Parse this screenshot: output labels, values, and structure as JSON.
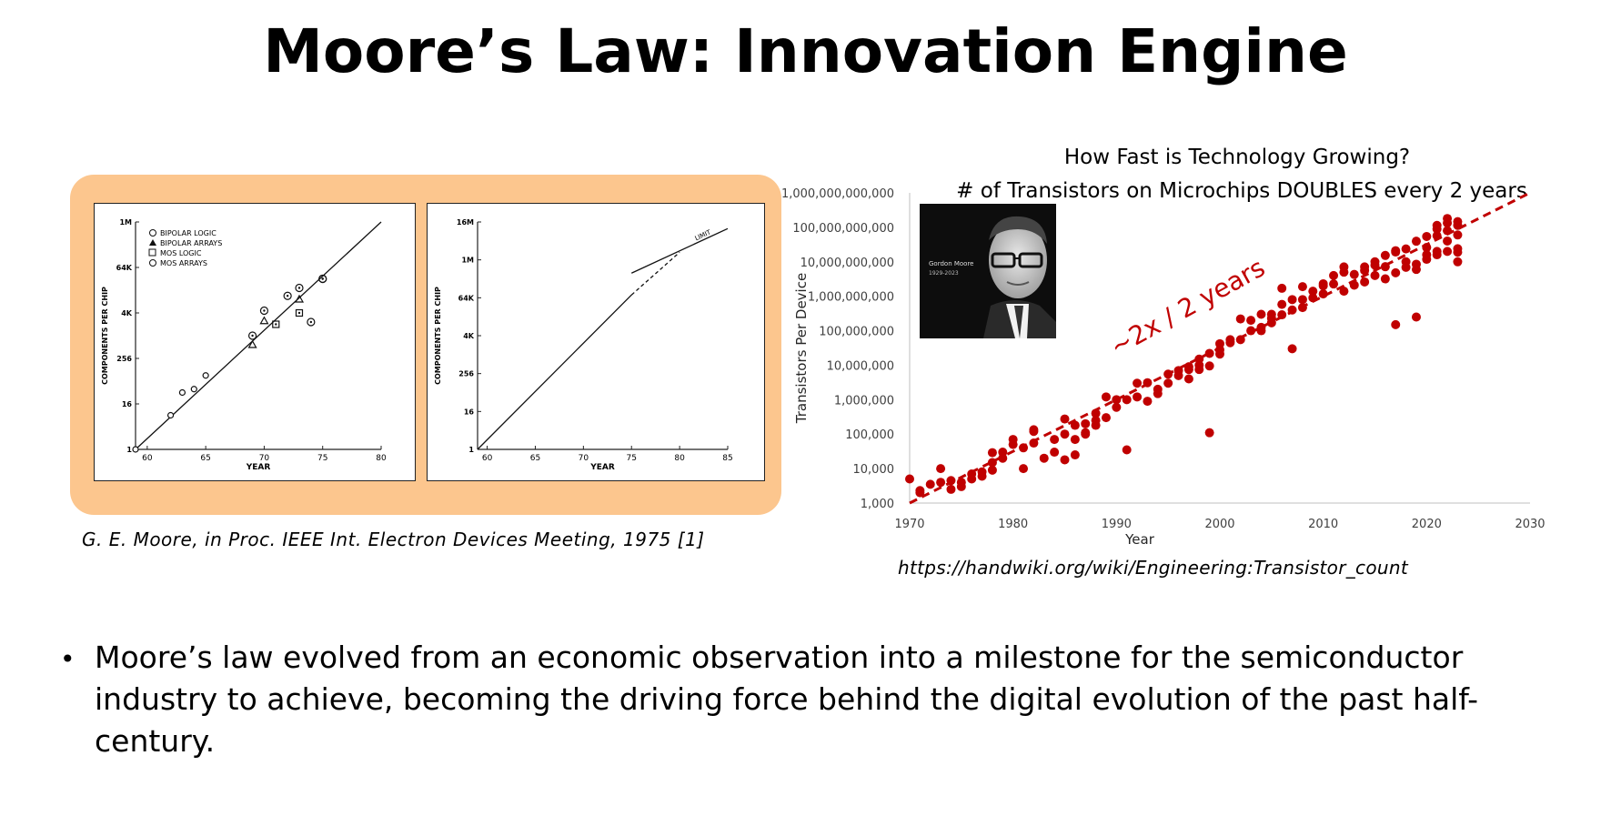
{
  "slide": {
    "title": "Moore’s Law: Innovation Engine",
    "left_caption": "G. E. Moore, in Proc. IEEE Int. Electron Devices Meeting, 1975 [1]",
    "right_caption": "https://handwiki.org/wiki/Engineering:Transistor_count",
    "bullet": "Moore’s law evolved from an economic observation into a milestone for the semiconductor industry to achieve, becoming the driving force behind the digital evolution of the past half-century.",
    "panel_color": "#fcc68e",
    "portrait": {
      "name": "Gordon Moore",
      "years": "1929-2023"
    }
  },
  "chart_data": [
    {
      "type": "scatter",
      "title": "",
      "xlabel": "YEAR",
      "ylabel": "COMPONENTS PER CHIP",
      "x_ticks": [
        "60",
        "65",
        "70",
        "75",
        "80"
      ],
      "y_ticks": [
        "1",
        "16",
        "256",
        "4K",
        "64K",
        "1M"
      ],
      "xlim": [
        59,
        80
      ],
      "ylim_log2": [
        0,
        20
      ],
      "legend": [
        "BIPOLAR LOGIC",
        "BIPOLAR ARRAYS",
        "MOS LOGIC",
        "MOS ARRAYS"
      ],
      "legend_placement": "top-left",
      "trend_line": {
        "x": [
          59,
          80
        ],
        "log2_y": [
          0,
          20
        ]
      },
      "trend_points_log2": [
        [
          59,
          0
        ],
        [
          62,
          3
        ],
        [
          63,
          5
        ],
        [
          64,
          5.3
        ],
        [
          65,
          6.5
        ]
      ],
      "series": [
        {
          "name": "BIPOLAR LOGIC",
          "points_log2": [
            [
              69,
              10
            ],
            [
              70,
              12.2
            ],
            [
              72,
              13.5
            ],
            [
              73,
              14.2
            ],
            [
              74,
              11.2
            ],
            [
              75,
              15
            ]
          ]
        },
        {
          "name": "BIPOLAR ARRAYS",
          "points_log2": [
            [
              69,
              9.2
            ],
            [
              70,
              11.3
            ],
            [
              73,
              13.2
            ]
          ]
        },
        {
          "name": "MOS LOGIC",
          "points_log2": [
            [
              71,
              11
            ],
            [
              73,
              12
            ]
          ]
        },
        {
          "name": "MOS ARRAYS",
          "points_log2": [
            [
              75,
              15
            ]
          ]
        }
      ]
    },
    {
      "type": "line",
      "title": "",
      "xlabel": "YEAR",
      "ylabel": "COMPONENTS PER CHIP",
      "x_ticks": [
        "60",
        "65",
        "70",
        "75",
        "80",
        "85"
      ],
      "y_ticks": [
        "1",
        "16",
        "256",
        "4K",
        "64K",
        "1M",
        "16M"
      ],
      "xlim": [
        59,
        85
      ],
      "ylim_log2": [
        0,
        24
      ],
      "annotation": "LIMIT",
      "series": [
        {
          "name": "",
          "style": "solid",
          "x": [
            59,
            75
          ],
          "log2_y": [
            0,
            16.3
          ]
        },
        {
          "name": "",
          "style": "dashed",
          "x": [
            75,
            80
          ],
          "log2_y": [
            16.3,
            20.8
          ]
        },
        {
          "name": "",
          "style": "solid",
          "x": [
            75,
            85
          ],
          "log2_y": [
            18.6,
            23.3
          ]
        }
      ]
    },
    {
      "type": "scatter",
      "title": "How Fast is Technology Growing?",
      "subtitle": "# of Transistors on Microchips DOUBLES every 2 years",
      "xlabel": "Year",
      "ylabel": "Transistors Per Device",
      "x_ticks": [
        "1970",
        "1980",
        "1990",
        "2000",
        "2010",
        "2020",
        "2030"
      ],
      "y_ticks": [
        "1,000",
        "10,000",
        "100,000",
        "1,000,000",
        "10,000,000",
        "100,000,000",
        "1,000,000,000",
        "10,000,000,000",
        "100,000,000,000",
        "1,000,000,000,000"
      ],
      "xlim": [
        1970,
        2030
      ],
      "ylog": true,
      "ylim": [
        1000,
        1000000000000
      ],
      "trend_label": "~2x / 2 years",
      "trend_line": {
        "x": [
          1970,
          2030
        ],
        "y": [
          1000,
          1000000000000
        ],
        "style": "dashed"
      },
      "color": "#c00000",
      "points": [
        [
          1970,
          5000
        ],
        [
          1971,
          2300
        ],
        [
          1971,
          2000
        ],
        [
          1972,
          3500
        ],
        [
          1973,
          4000
        ],
        [
          1973,
          10000
        ],
        [
          1974,
          2500
        ],
        [
          1974,
          4500
        ],
        [
          1975,
          3000
        ],
        [
          1975,
          4000
        ],
        [
          1976,
          5000
        ],
        [
          1976,
          7000
        ],
        [
          1977,
          6000
        ],
        [
          1977,
          8000
        ],
        [
          1978,
          9000
        ],
        [
          1978,
          15000
        ],
        [
          1978,
          29000
        ],
        [
          1979,
          30000
        ],
        [
          1979,
          20000
        ],
        [
          1980,
          50000
        ],
        [
          1980,
          70000
        ],
        [
          1981,
          40000
        ],
        [
          1981,
          10000
        ],
        [
          1982,
          55000
        ],
        [
          1982,
          120000
        ],
        [
          1982,
          134000
        ],
        [
          1983,
          20000
        ],
        [
          1984,
          70000
        ],
        [
          1984,
          30000
        ],
        [
          1985,
          275000
        ],
        [
          1985,
          100000
        ],
        [
          1985,
          18000
        ],
        [
          1986,
          70000
        ],
        [
          1986,
          180000
        ],
        [
          1986,
          25000
        ],
        [
          1987,
          200000
        ],
        [
          1987,
          100000
        ],
        [
          1987,
          110000
        ],
        [
          1988,
          250000
        ],
        [
          1988,
          400000
        ],
        [
          1988,
          180000
        ],
        [
          1989,
          1200000
        ],
        [
          1989,
          300000
        ],
        [
          1990,
          1000000
        ],
        [
          1990,
          600000
        ],
        [
          1991,
          1000000
        ],
        [
          1991,
          35000
        ],
        [
          1992,
          3000000
        ],
        [
          1992,
          1200000
        ],
        [
          1993,
          3100000
        ],
        [
          1993,
          900000
        ],
        [
          1994,
          2000000
        ],
        [
          1994,
          1500000
        ],
        [
          1995,
          5500000
        ],
        [
          1995,
          3000000
        ],
        [
          1996,
          7000000
        ],
        [
          1996,
          5000000
        ],
        [
          1997,
          7500000
        ],
        [
          1997,
          4000000
        ],
        [
          1997,
          9000000
        ],
        [
          1998,
          7500000
        ],
        [
          1998,
          10000000
        ],
        [
          1998,
          15000000
        ],
        [
          1999,
          22000000
        ],
        [
          1999,
          9500000
        ],
        [
          1999,
          110000
        ],
        [
          2000,
          42000000
        ],
        [
          2000,
          28000000
        ],
        [
          2000,
          21000000
        ],
        [
          2001,
          45000000
        ],
        [
          2001,
          55000000
        ],
        [
          2002,
          220000000
        ],
        [
          2002,
          55000000
        ],
        [
          2003,
          100000000
        ],
        [
          2003,
          200000000
        ],
        [
          2004,
          125000000
        ],
        [
          2004,
          300000000
        ],
        [
          2004,
          100000000
        ],
        [
          2005,
          230000000
        ],
        [
          2005,
          300000000
        ],
        [
          2005,
          170000000
        ],
        [
          2006,
          290000000
        ],
        [
          2006,
          580000000
        ],
        [
          2006,
          1700000000
        ],
        [
          2007,
          800000000
        ],
        [
          2007,
          400000000
        ],
        [
          2007,
          30000000
        ],
        [
          2008,
          800000000
        ],
        [
          2008,
          1900000000
        ],
        [
          2008,
          470000000
        ],
        [
          2009,
          900000000
        ],
        [
          2009,
          1400000000
        ],
        [
          2010,
          2300000000
        ],
        [
          2010,
          1170000000
        ],
        [
          2010,
          2000000000
        ],
        [
          2011,
          2270000000
        ],
        [
          2011,
          4000000000
        ],
        [
          2012,
          1400000000
        ],
        [
          2012,
          5000000000
        ],
        [
          2012,
          7100000000
        ],
        [
          2013,
          2100000000
        ],
        [
          2013,
          4300000000
        ],
        [
          2014,
          2600000000
        ],
        [
          2014,
          5600000000
        ],
        [
          2014,
          7100000000
        ],
        [
          2015,
          4000000000
        ],
        [
          2015,
          8000000000
        ],
        [
          2015,
          10000000000
        ],
        [
          2016,
          3200000000
        ],
        [
          2016,
          7200000000
        ],
        [
          2016,
          15300000000
        ],
        [
          2017,
          4800000000
        ],
        [
          2017,
          21000000000
        ],
        [
          2017,
          19200000000
        ],
        [
          2017,
          150000000
        ],
        [
          2018,
          6900000000
        ],
        [
          2018,
          10000000000
        ],
        [
          2018,
          23600000000
        ],
        [
          2019,
          8500000000
        ],
        [
          2019,
          39500000000
        ],
        [
          2019,
          6000000000
        ],
        [
          2019,
          250000000
        ],
        [
          2020,
          11800000000
        ],
        [
          2020,
          16000000000
        ],
        [
          2020,
          54200000000
        ],
        [
          2020,
          26000000000
        ],
        [
          2021,
          16000000000
        ],
        [
          2021,
          20000000000
        ],
        [
          2021,
          57000000000
        ],
        [
          2021,
          114000000000
        ],
        [
          2022,
          20000000000
        ],
        [
          2022,
          80000000000
        ],
        [
          2022,
          134000000000
        ],
        [
          2022,
          40000000000
        ],
        [
          2023,
          114000000000
        ],
        [
          2023,
          146000000000
        ],
        [
          2023,
          24000000000
        ],
        [
          2023,
          19000000000
        ],
        [
          2023,
          60000000000
        ],
        [
          2023,
          10000000000
        ],
        [
          2021,
          90000000000
        ],
        [
          2022,
          180000000000
        ]
      ]
    }
  ]
}
